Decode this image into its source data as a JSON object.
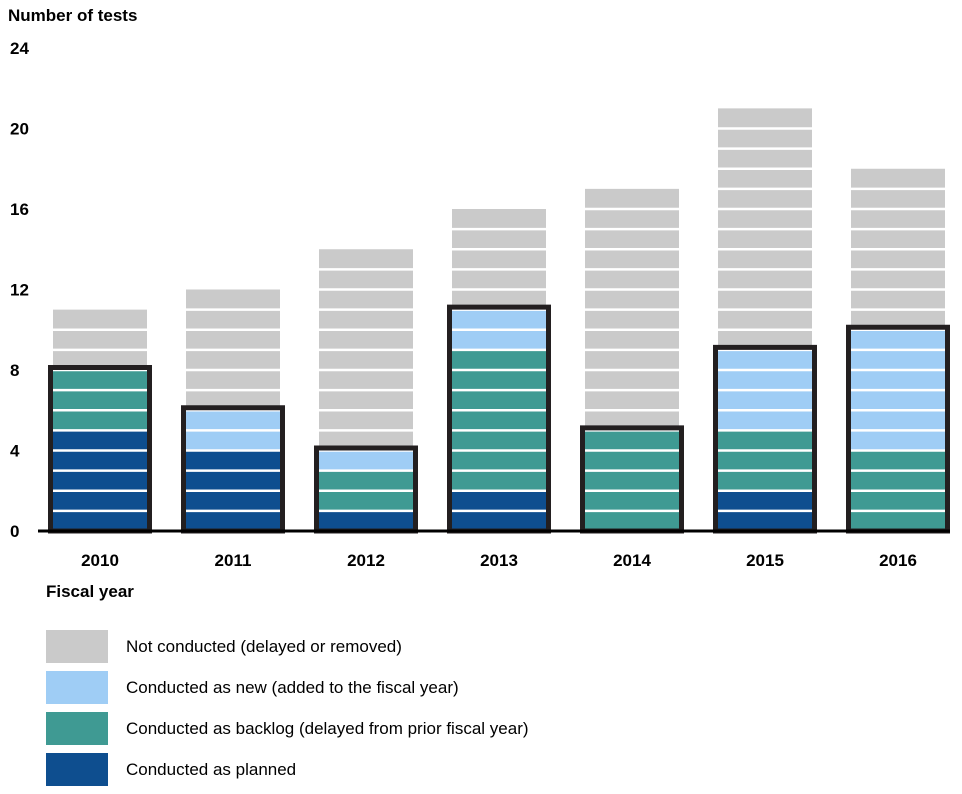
{
  "chart_data": {
    "type": "bar",
    "stacked": true,
    "ylabel": "Number of tests",
    "xlabel": "Fiscal year",
    "ylim": [
      0,
      24
    ],
    "yticks": [
      0,
      4,
      8,
      12,
      16,
      20,
      24
    ],
    "categories": [
      "2010",
      "2011",
      "2012",
      "2013",
      "2014",
      "2015",
      "2016"
    ],
    "series": [
      {
        "name": "Conducted as planned",
        "color": "#0e4e8f",
        "values": [
          5,
          4,
          1,
          2,
          0,
          2,
          0
        ]
      },
      {
        "name": "Conducted as backlog (delayed from prior fiscal year)",
        "color": "#3f9a93",
        "values": [
          3,
          0,
          2,
          7,
          5,
          3,
          4
        ]
      },
      {
        "name": "Conducted as new (added to the fiscal year)",
        "color": "#9fcdf5",
        "values": [
          0,
          2,
          1,
          2,
          0,
          4,
          6
        ]
      },
      {
        "name": "Not conducted (delayed or removed)",
        "color": "#cacaca",
        "values": [
          3,
          6,
          10,
          5,
          12,
          12,
          8
        ]
      }
    ],
    "legend_order": [
      3,
      2,
      1,
      0
    ],
    "legend_position": "bottom-left",
    "grid": false
  }
}
